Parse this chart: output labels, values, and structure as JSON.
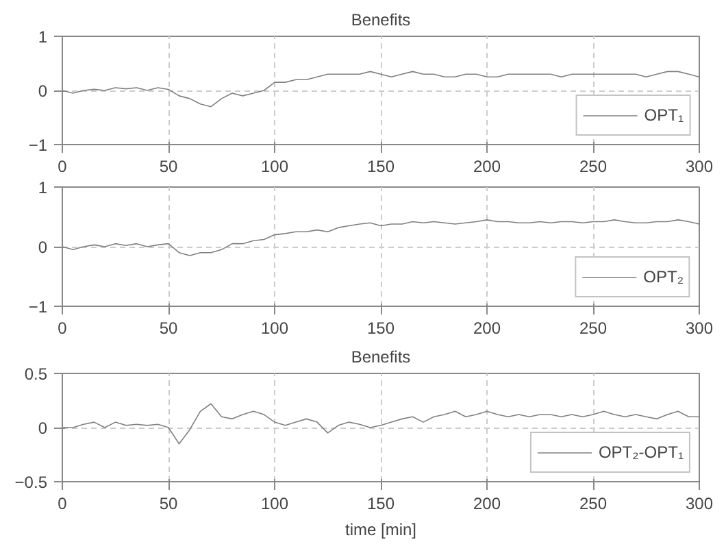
{
  "chart_data": [
    {
      "type": "line",
      "title": "Benefits",
      "xlim": [
        0,
        300
      ],
      "ylim": [
        -1,
        1
      ],
      "xticks": [
        0,
        50,
        100,
        150,
        200,
        250,
        300
      ],
      "yticks": [
        -1,
        0,
        1
      ],
      "grid": true,
      "legend": "bottom right",
      "x": [
        0,
        5,
        10,
        15,
        20,
        25,
        30,
        35,
        40,
        45,
        50,
        55,
        60,
        65,
        70,
        75,
        80,
        85,
        90,
        95,
        100,
        105,
        110,
        115,
        120,
        125,
        130,
        135,
        140,
        145,
        150,
        155,
        160,
        165,
        170,
        175,
        180,
        185,
        190,
        195,
        200,
        205,
        210,
        215,
        220,
        225,
        230,
        235,
        240,
        245,
        250,
        255,
        260,
        265,
        270,
        275,
        280,
        285,
        290,
        295,
        300
      ],
      "series": [
        {
          "name": "OPT₁",
          "color": "#808080",
          "values": [
            0.0,
            -0.05,
            0.0,
            0.02,
            0.0,
            0.05,
            0.03,
            0.05,
            0.0,
            0.05,
            0.02,
            -0.1,
            -0.15,
            -0.25,
            -0.3,
            -0.15,
            -0.05,
            -0.1,
            -0.05,
            0.0,
            0.15,
            0.15,
            0.2,
            0.2,
            0.25,
            0.3,
            0.3,
            0.3,
            0.3,
            0.35,
            0.3,
            0.25,
            0.3,
            0.35,
            0.3,
            0.3,
            0.25,
            0.25,
            0.3,
            0.3,
            0.25,
            0.25,
            0.3,
            0.3,
            0.3,
            0.3,
            0.3,
            0.25,
            0.3,
            0.3,
            0.3,
            0.3,
            0.3,
            0.3,
            0.3,
            0.25,
            0.3,
            0.35,
            0.35,
            0.3,
            0.25
          ]
        }
      ]
    },
    {
      "type": "line",
      "xlim": [
        0,
        300
      ],
      "ylim": [
        -1,
        1
      ],
      "xticks": [
        0,
        50,
        100,
        150,
        200,
        250,
        300
      ],
      "yticks": [
        -1,
        0,
        1
      ],
      "grid": true,
      "legend": "bottom right",
      "x": [
        0,
        5,
        10,
        15,
        20,
        25,
        30,
        35,
        40,
        45,
        50,
        55,
        60,
        65,
        70,
        75,
        80,
        85,
        90,
        95,
        100,
        105,
        110,
        115,
        120,
        125,
        130,
        135,
        140,
        145,
        150,
        155,
        160,
        165,
        170,
        175,
        180,
        185,
        190,
        195,
        200,
        205,
        210,
        215,
        220,
        225,
        230,
        235,
        240,
        245,
        250,
        255,
        260,
        265,
        270,
        275,
        280,
        285,
        290,
        295,
        300
      ],
      "series": [
        {
          "name": "OPT₂",
          "color": "#808080",
          "values": [
            0.0,
            -0.05,
            0.0,
            0.03,
            0.0,
            0.05,
            0.02,
            0.05,
            0.0,
            0.03,
            0.05,
            -0.1,
            -0.15,
            -0.1,
            -0.1,
            -0.05,
            0.05,
            0.05,
            0.1,
            0.12,
            0.2,
            0.22,
            0.25,
            0.25,
            0.28,
            0.25,
            0.32,
            0.35,
            0.38,
            0.4,
            0.35,
            0.38,
            0.38,
            0.42,
            0.4,
            0.42,
            0.4,
            0.38,
            0.4,
            0.42,
            0.45,
            0.42,
            0.42,
            0.4,
            0.4,
            0.42,
            0.4,
            0.42,
            0.42,
            0.4,
            0.42,
            0.42,
            0.45,
            0.42,
            0.4,
            0.4,
            0.42,
            0.42,
            0.45,
            0.42,
            0.38
          ]
        }
      ]
    },
    {
      "type": "line",
      "title": "Benefits",
      "xlabel": "time [min]",
      "xlim": [
        0,
        300
      ],
      "ylim": [
        -0.5,
        0.5
      ],
      "xticks": [
        0,
        50,
        100,
        150,
        200,
        250,
        300
      ],
      "yticks": [
        -0.5,
        0,
        0.5
      ],
      "grid": true,
      "legend": "bottom right",
      "x": [
        0,
        5,
        10,
        15,
        20,
        25,
        30,
        35,
        40,
        45,
        50,
        55,
        60,
        65,
        70,
        75,
        80,
        85,
        90,
        95,
        100,
        105,
        110,
        115,
        120,
        125,
        130,
        135,
        140,
        145,
        150,
        155,
        160,
        165,
        170,
        175,
        180,
        185,
        190,
        195,
        200,
        205,
        210,
        215,
        220,
        225,
        230,
        235,
        240,
        245,
        250,
        255,
        260,
        265,
        270,
        275,
        280,
        285,
        290,
        295,
        300
      ],
      "series": [
        {
          "name": "OPT₂-OPT₁",
          "color": "#808080",
          "values": [
            0.0,
            0.0,
            0.03,
            0.05,
            0.0,
            0.05,
            0.02,
            0.03,
            0.02,
            0.03,
            0.0,
            -0.15,
            -0.02,
            0.15,
            0.22,
            0.1,
            0.08,
            0.12,
            0.15,
            0.12,
            0.05,
            0.02,
            0.05,
            0.08,
            0.05,
            -0.05,
            0.02,
            0.05,
            0.03,
            0.0,
            0.02,
            0.05,
            0.08,
            0.1,
            0.05,
            0.1,
            0.12,
            0.15,
            0.1,
            0.12,
            0.15,
            0.12,
            0.1,
            0.12,
            0.1,
            0.12,
            0.12,
            0.1,
            0.12,
            0.1,
            0.12,
            0.15,
            0.12,
            0.1,
            0.12,
            0.1,
            0.08,
            0.12,
            0.15,
            0.1,
            0.1
          ]
        }
      ]
    }
  ]
}
